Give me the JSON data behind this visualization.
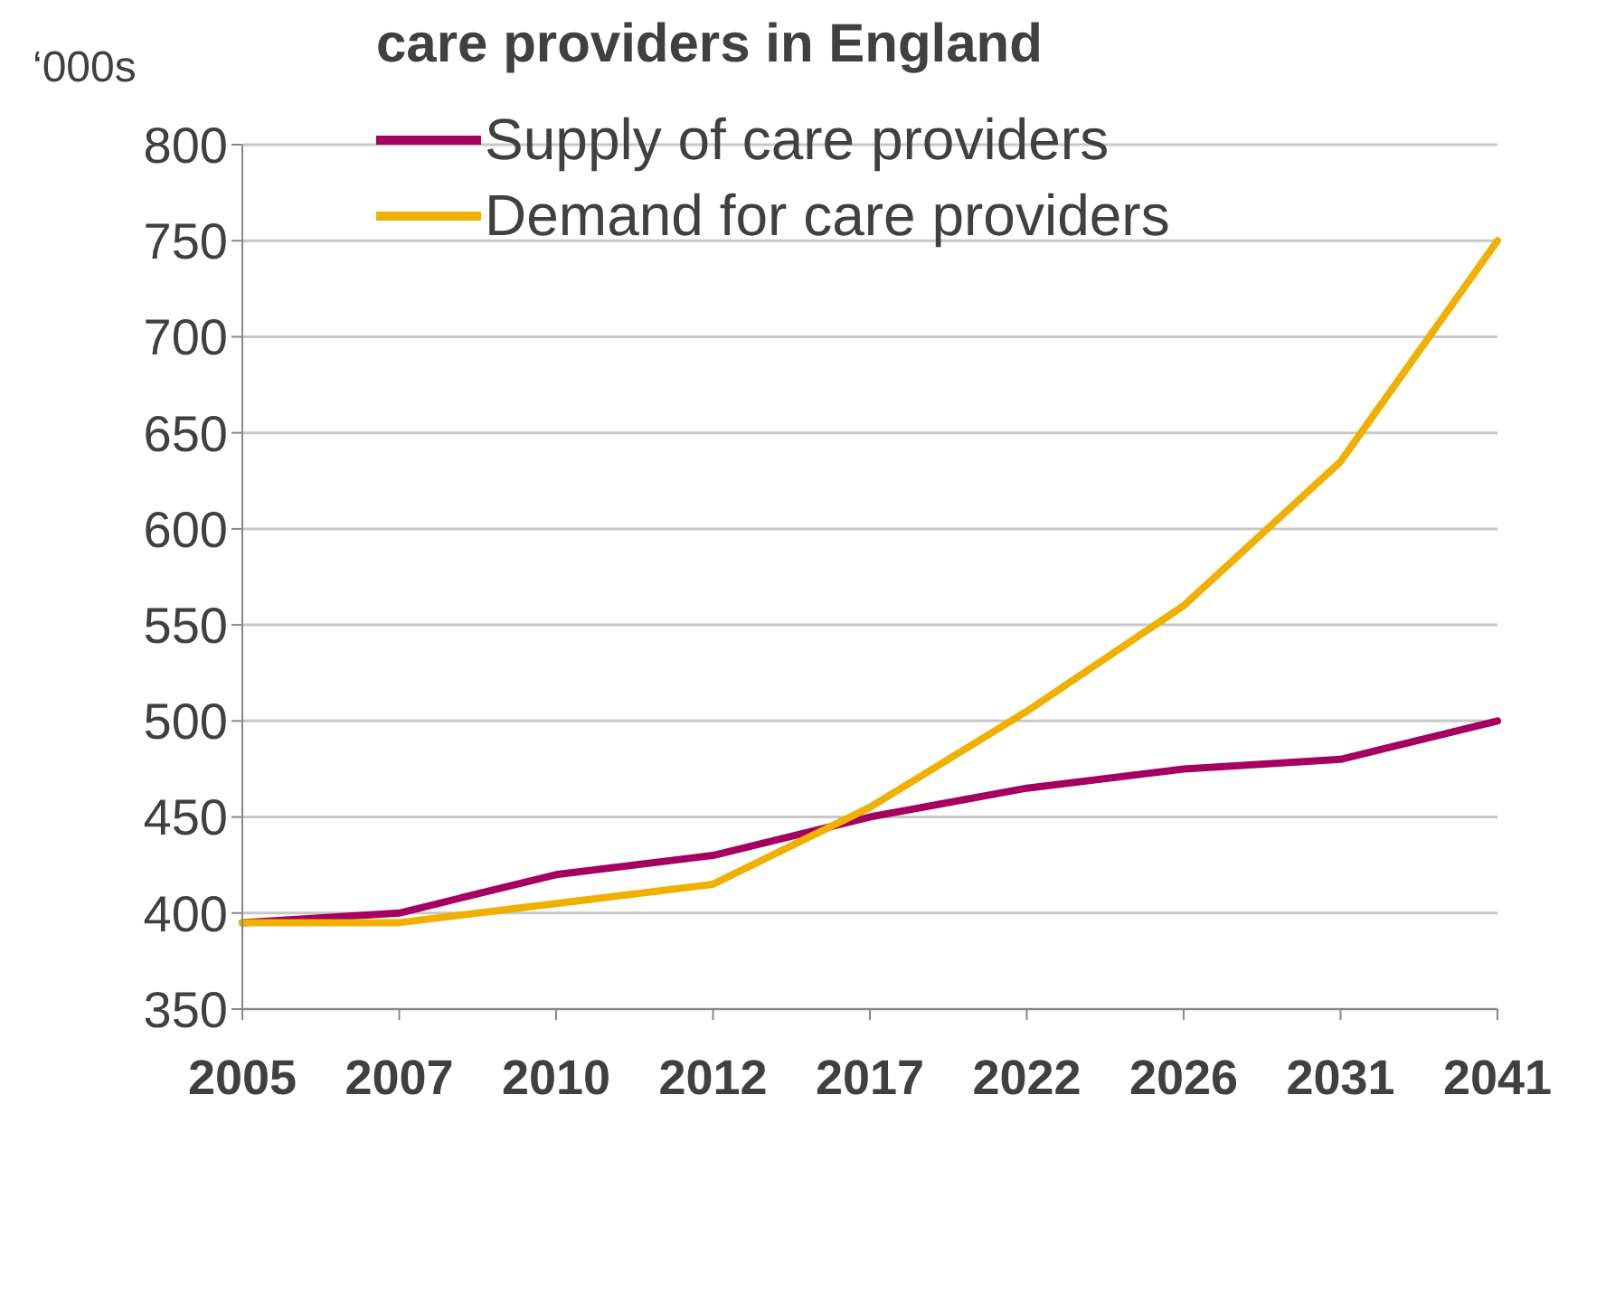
{
  "chart_data": {
    "type": "line",
    "title": "care providers in England",
    "ylabel": "‘000s",
    "categories": [
      "2005",
      "2007",
      "2010",
      "2012",
      "2017",
      "2022",
      "2026",
      "2031",
      "2041"
    ],
    "series": [
      {
        "name": "Supply of care providers",
        "color": "#a5005f",
        "values": [
          395,
          400,
          420,
          430,
          450,
          465,
          475,
          480,
          500
        ]
      },
      {
        "name": "Demand for care providers",
        "color": "#f0b000",
        "values": [
          395,
          395,
          405,
          415,
          455,
          505,
          560,
          635,
          750
        ]
      }
    ],
    "ylim": [
      350,
      800
    ],
    "yticks": [
      350,
      400,
      450,
      500,
      550,
      600,
      650,
      700,
      750,
      800
    ],
    "grid": "y",
    "legend": "top left",
    "marker": "none",
    "line_style": "solid"
  }
}
